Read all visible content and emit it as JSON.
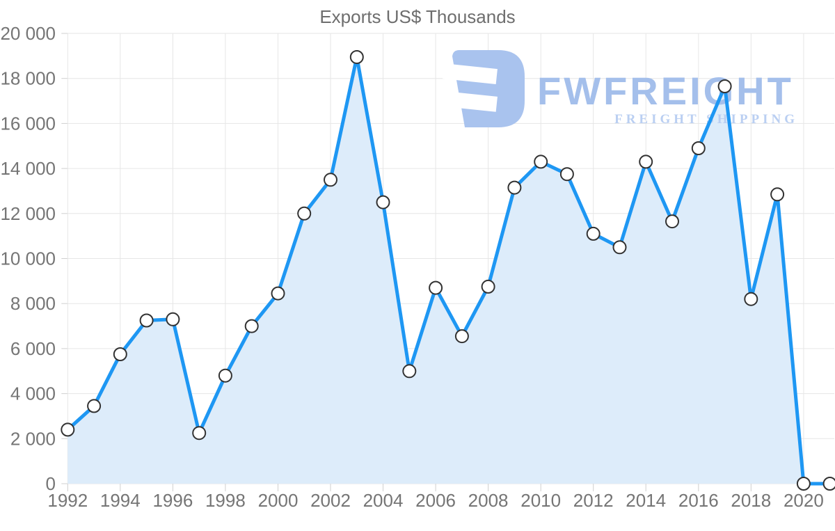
{
  "title": "Exports US$ Thousands",
  "watermark": {
    "brand": "FWFREIGHT",
    "tagline": "FREIGHT SHIPPING",
    "icon_color": "#a9c3ee",
    "brand_color": "#a4bfeb",
    "tagline_color": "#bacff2"
  },
  "chart_data": {
    "type": "area",
    "title": "Exports US$ Thousands",
    "xlabel": "",
    "ylabel": "",
    "x": [
      1992,
      1993,
      1994,
      1995,
      1996,
      1997,
      1998,
      1999,
      2000,
      2001,
      2002,
      2003,
      2004,
      2005,
      2006,
      2007,
      2008,
      2009,
      2010,
      2011,
      2012,
      2013,
      2014,
      2015,
      2016,
      2017,
      2018,
      2019,
      2020,
      2021
    ],
    "series": [
      {
        "name": "Exports US$ Thousands",
        "values": [
          2400,
          3450,
          5750,
          7250,
          7300,
          2250,
          4800,
          7000,
          8450,
          12000,
          13500,
          18950,
          12500,
          5000,
          8700,
          6550,
          8750,
          13150,
          14300,
          13750,
          11100,
          10500,
          14300,
          11650,
          14900,
          17650,
          8200,
          12850,
          0,
          0
        ]
      }
    ],
    "ylim": [
      0,
      20000
    ],
    "ytick_step": 2000,
    "ytick_labels": [
      "0",
      "2 000",
      "4 000",
      "6 000",
      "8 000",
      "10 000",
      "12 000",
      "14 000",
      "16 000",
      "18 000",
      "20 000"
    ],
    "xtick_step": 2,
    "xtick_labels": [
      "1992",
      "1994",
      "1996",
      "1998",
      "2000",
      "2002",
      "2004",
      "2006",
      "2008",
      "2010",
      "2012",
      "2014",
      "2016",
      "2018",
      "2020"
    ],
    "grid": true,
    "legend": "none",
    "marker": "circle",
    "colors": {
      "line": "#1e97f3",
      "fill": "#ddecfa",
      "grid": "#e6e6e6",
      "tick": "#cfcfcf",
      "axis_text": "#757575",
      "title": "#6e6e6e",
      "marker_fill": "#ffffff",
      "marker_stroke": "#323232"
    }
  }
}
